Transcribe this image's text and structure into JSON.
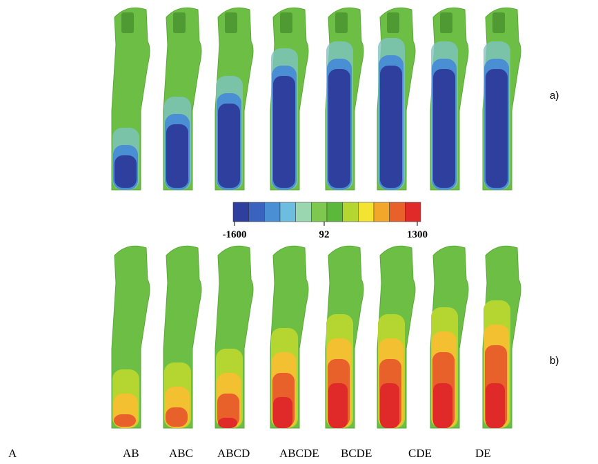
{
  "figure": {
    "panels": [
      {
        "label": "a)"
      },
      {
        "label": "b)"
      }
    ],
    "columns": [
      "A",
      "AB",
      "ABC",
      "ABCD",
      "ABCDE",
      "BCDE",
      "CDE",
      "DE"
    ],
    "colorbar": {
      "colors": [
        "#2e3f9e",
        "#3a63c0",
        "#4a8fd4",
        "#6cbde0",
        "#9ad6b0",
        "#7ec850",
        "#5cb83a",
        "#b5d630",
        "#f2e430",
        "#f2a62a",
        "#e8602a",
        "#e02a2a"
      ],
      "ticks": [
        -1600,
        92,
        1300
      ]
    }
  }
}
